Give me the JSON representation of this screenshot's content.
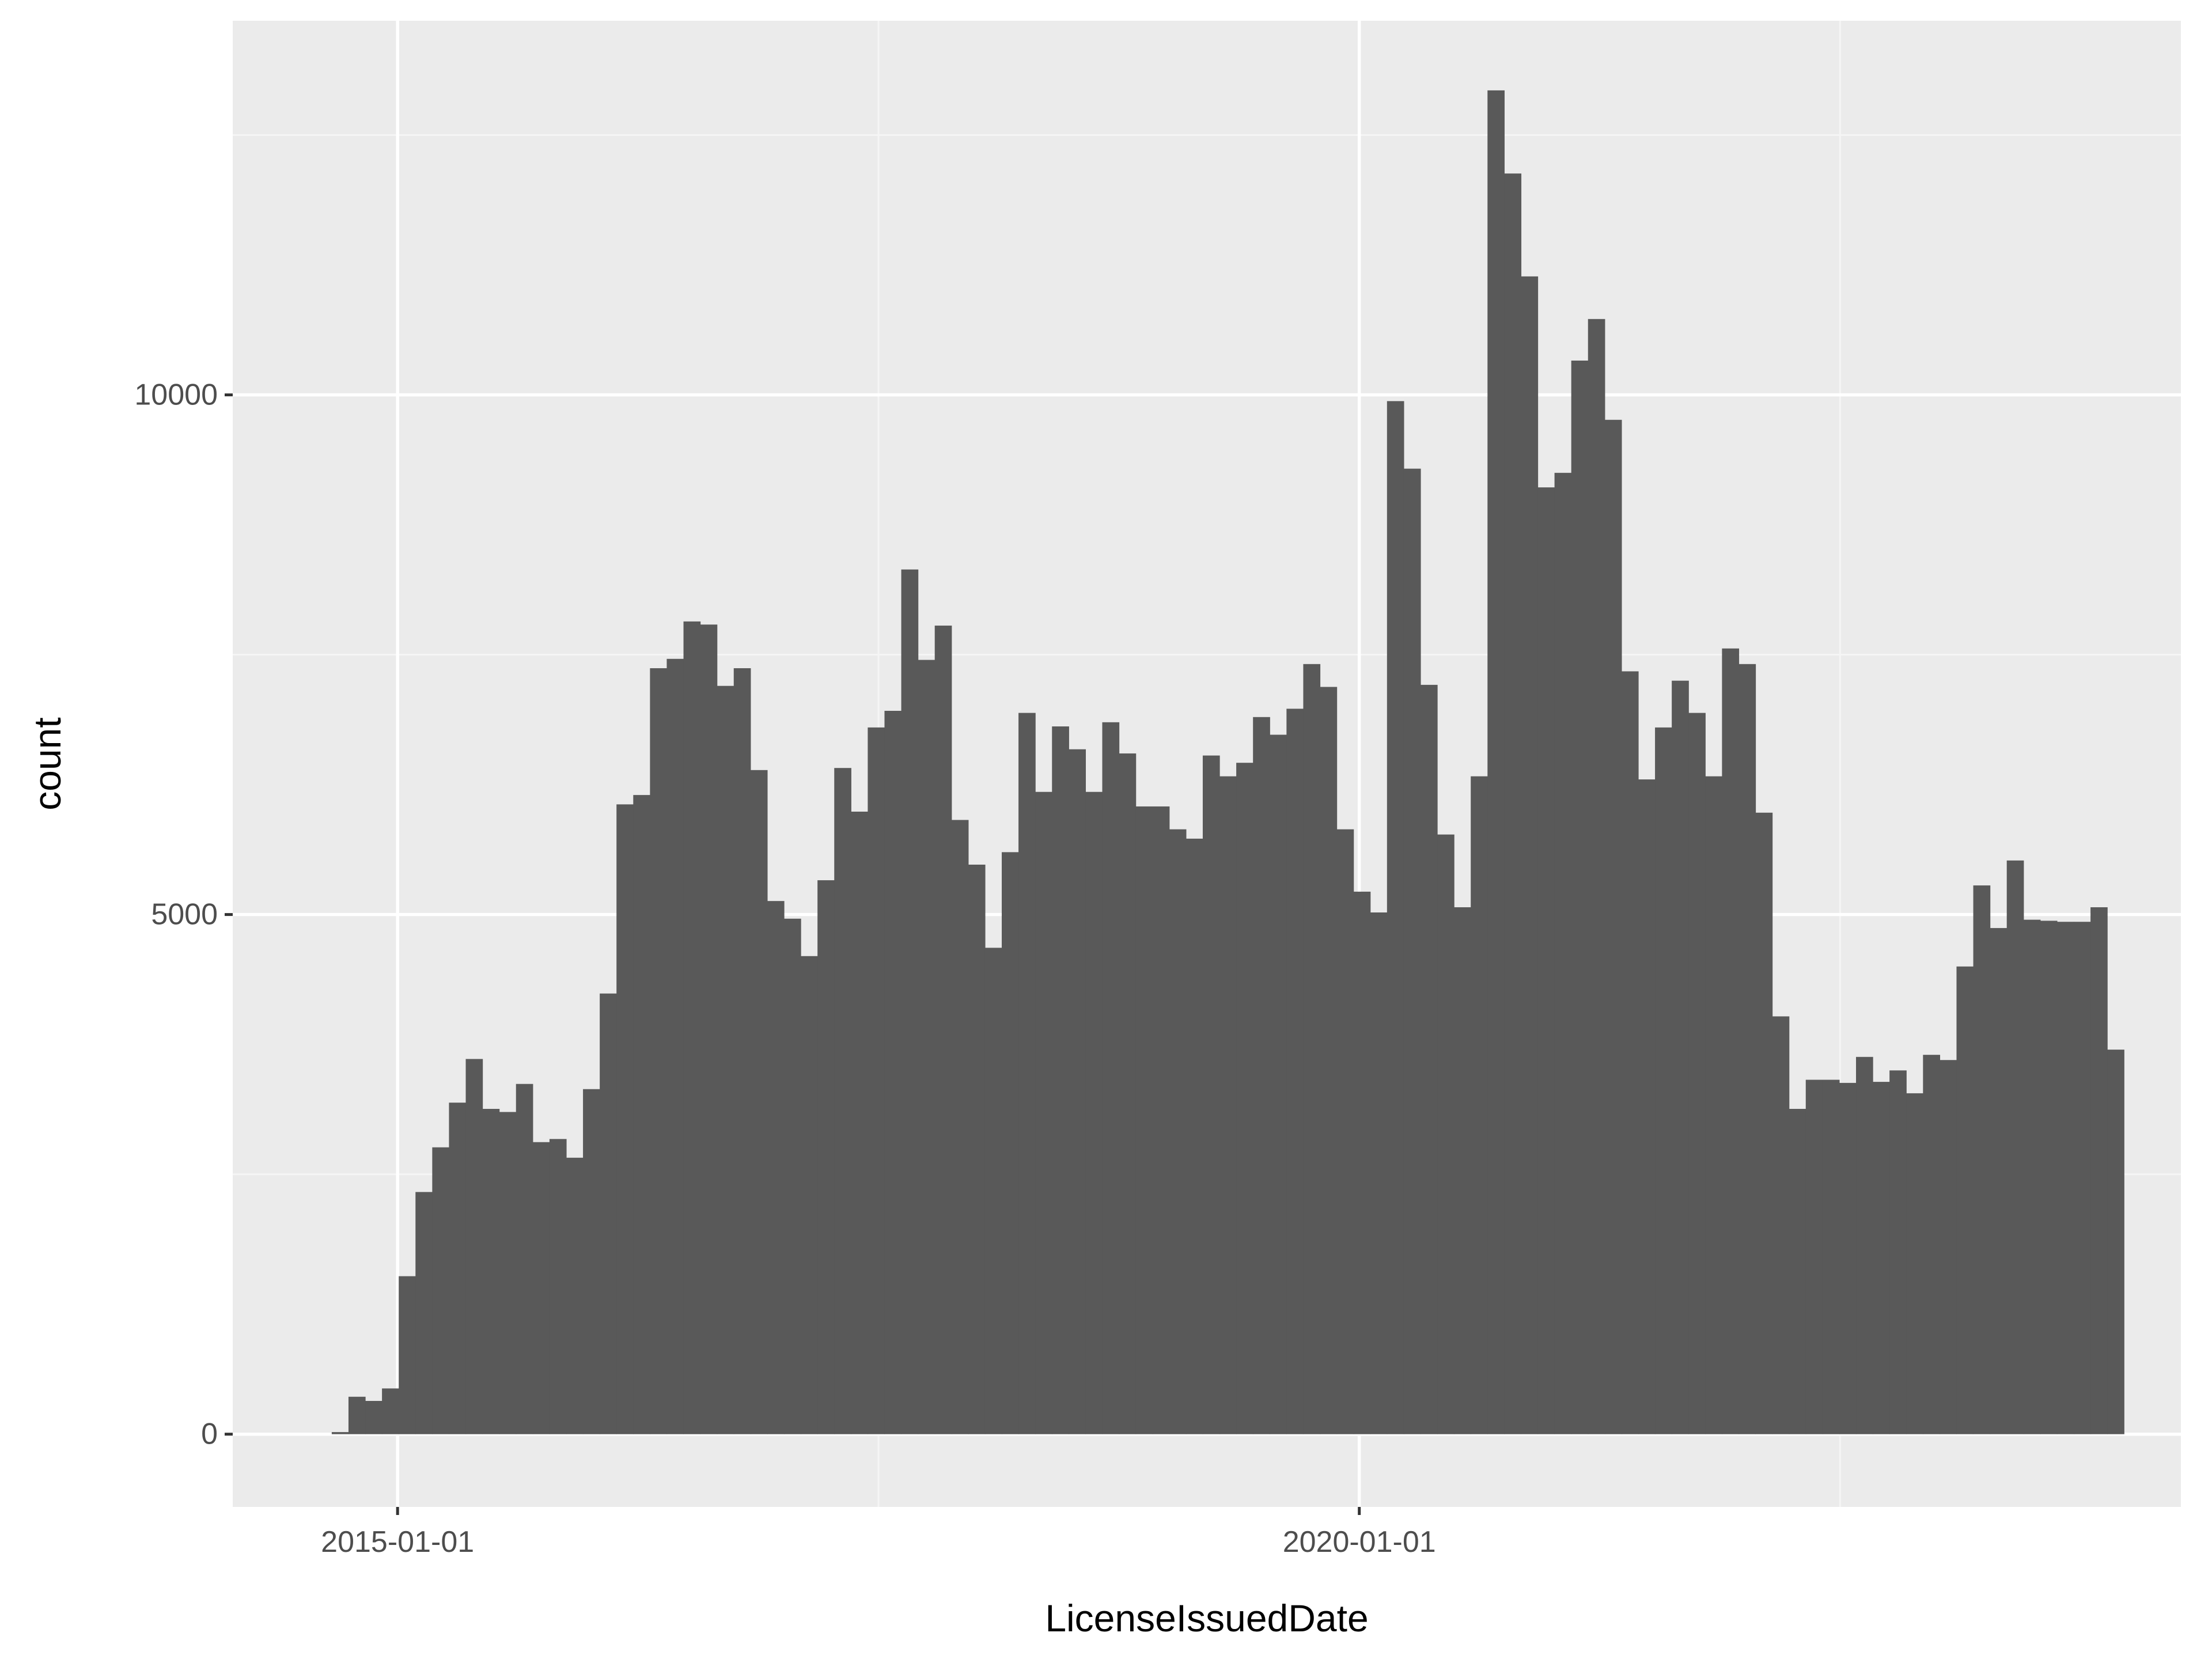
{
  "chart_data": {
    "type": "bar",
    "subtype": "histogram",
    "xlabel": "LicenseIssuedDate",
    "ylabel": "count",
    "grid": true,
    "legend": "none",
    "colors": {
      "panel_background": "#ebebeb",
      "grid_major": "#ffffff",
      "grid_minor": "#f5f5f5",
      "bar_fill": "#595959",
      "tick_label": "#4d4d4d",
      "axis_title": "#000000",
      "tick_mark": "#333333"
    },
    "x_domain": [
      "2014-02-22",
      "2024-04-09"
    ],
    "ylim": [
      -700,
      13600
    ],
    "x_ticks": [
      {
        "value": "2015-01-01",
        "label": "2015-01-01"
      },
      {
        "value": "2020-01-01",
        "label": "2020-01-01"
      }
    ],
    "x_minor_grid": [
      "2017-07-02",
      "2022-07-02"
    ],
    "y_ticks": [
      {
        "value": 0,
        "label": "0"
      },
      {
        "value": 5000,
        "label": "5000"
      },
      {
        "value": 10000,
        "label": "10000"
      }
    ],
    "y_minor_grid": [
      2500,
      7500,
      12500
    ],
    "bins": {
      "start": "2014-08-29",
      "end": "2023-12-23",
      "counts": [
        20,
        360,
        320,
        440,
        1520,
        2330,
        2760,
        3190,
        3610,
        3130,
        3100,
        3370,
        2810,
        2840,
        2660,
        3320,
        4240,
        6060,
        6150,
        7370,
        7460,
        7820,
        7790,
        7200,
        7370,
        6390,
        5130,
        4960,
        4600,
        5330,
        6410,
        5990,
        6800,
        6960,
        8320,
        7450,
        7780,
        5910,
        5480,
        4680,
        5600,
        6940,
        6180,
        6810,
        6590,
        6180,
        6850,
        6550,
        6040,
        6040,
        5820,
        5730,
        6530,
        6330,
        6460,
        6900,
        6730,
        6980,
        7410,
        7190,
        5820,
        5220,
        5020,
        9940,
        9290,
        7210,
        5770,
        5070,
        6330,
        12930,
        12130,
        11140,
        9110,
        9250,
        10330,
        10730,
        9760,
        7340,
        6300,
        6800,
        7250,
        6940,
        6330,
        7560,
        7410,
        5980,
        4020,
        3130,
        3410,
        3410,
        3380,
        3630,
        3390,
        3500,
        3280,
        3650,
        3600,
        4500,
        5280,
        4870,
        5520,
        4950,
        4940,
        4930,
        4930,
        5070,
        3700
      ]
    }
  }
}
